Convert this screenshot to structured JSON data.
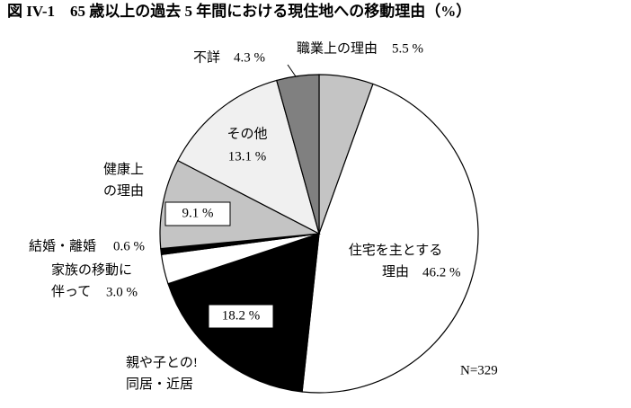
{
  "chart_data": {
    "type": "pie",
    "title": "図 IV-1　65 歳以上の過去 5 年間における現住地への移動理由（%）",
    "note": "N=329",
    "categories": [
      "職業上の理由",
      "住宅を主とする\n理由",
      "親や子との!\n同居・近居",
      "家族の移動に\n伴って",
      "結婚・離婚",
      "健康上\nの理由",
      "その他",
      "不詳"
    ],
    "values": [
      5.5,
      46.2,
      18.2,
      3.0,
      0.6,
      9.1,
      13.1,
      4.3
    ],
    "value_labels": [
      "5.5 %",
      "46.2 %",
      "18.2 %",
      "3.0 %",
      "0.6 %",
      "9.1 %",
      "13.1 %",
      "4.3 %"
    ],
    "colors": [
      "#c4c4c4",
      "#ffffff",
      "#000000",
      "#ffffff",
      "#000000",
      "#c4c4c4",
      "#f0f0f0",
      "#808080"
    ]
  }
}
